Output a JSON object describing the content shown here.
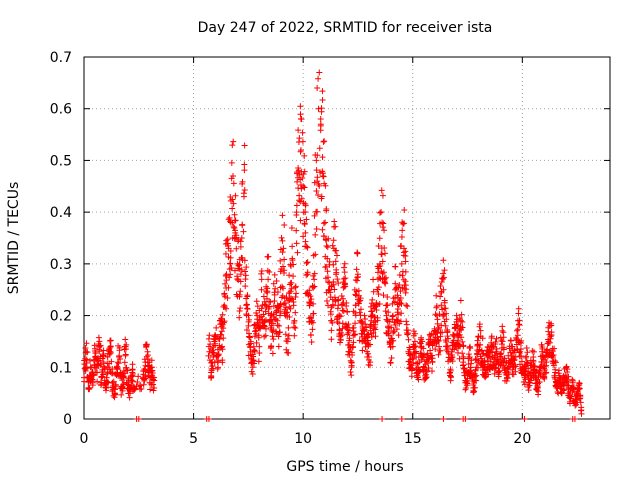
{
  "chart_data": {
    "type": "scatter",
    "title": "Day 247 of 2022, SRMTID for receiver ista",
    "xlabel": "GPS time / hours",
    "ylabel": "SRMTID / TECUs",
    "xlim": [
      0,
      24
    ],
    "ylim": [
      0,
      0.7
    ],
    "xticks": [
      0,
      5,
      10,
      15,
      20
    ],
    "xtick_labels": [
      "0",
      "5",
      "10",
      "15",
      "20"
    ],
    "yticks": [
      0,
      0.1,
      0.2,
      0.3,
      0.4,
      0.5,
      0.6,
      0.7
    ],
    "ytick_labels": [
      "0",
      "0.1",
      "0.2",
      "0.3",
      "0.4",
      "0.5",
      "0.6",
      "0.7"
    ],
    "grid": true,
    "marker": "plus",
    "series": [
      {
        "name": "SRMTID",
        "color": "#ff0000",
        "shape_points": [
          [
            0.0,
            0.08
          ],
          [
            0.1,
            0.13
          ],
          [
            0.2,
            0.06
          ],
          [
            0.3,
            0.1
          ],
          [
            0.4,
            0.07
          ],
          [
            0.5,
            0.12
          ],
          [
            0.6,
            0.09
          ],
          [
            0.7,
            0.15
          ],
          [
            0.8,
            0.08
          ],
          [
            0.9,
            0.11
          ],
          [
            1.0,
            0.06
          ],
          [
            1.1,
            0.1
          ],
          [
            1.2,
            0.13
          ],
          [
            1.3,
            0.07
          ],
          [
            1.4,
            0.05
          ],
          [
            1.5,
            0.09
          ],
          [
            1.6,
            0.12
          ],
          [
            1.7,
            0.06
          ],
          [
            1.8,
            0.08
          ],
          [
            1.9,
            0.14
          ],
          [
            2.0,
            0.07
          ],
          [
            2.1,
            0.05
          ],
          [
            2.2,
            0.09
          ],
          [
            2.3,
            0.06
          ],
          [
            2.7,
            0.08
          ],
          [
            2.8,
            0.11
          ],
          [
            2.9,
            0.13
          ],
          [
            3.0,
            0.07
          ],
          [
            3.1,
            0.1
          ],
          [
            3.2,
            0.06
          ],
          [
            5.7,
            0.14
          ],
          [
            5.8,
            0.09
          ],
          [
            5.9,
            0.12
          ],
          [
            6.0,
            0.16
          ],
          [
            6.1,
            0.11
          ],
          [
            6.2,
            0.19
          ],
          [
            6.3,
            0.14
          ],
          [
            6.4,
            0.22
          ],
          [
            6.5,
            0.28
          ],
          [
            6.6,
            0.33
          ],
          [
            6.7,
            0.38
          ],
          [
            6.8,
            0.47
          ],
          [
            6.9,
            0.36
          ],
          [
            7.0,
            0.3
          ],
          [
            7.1,
            0.24
          ],
          [
            7.2,
            0.35
          ],
          [
            7.3,
            0.43
          ],
          [
            7.4,
            0.22
          ],
          [
            7.5,
            0.18
          ],
          [
            7.6,
            0.13
          ],
          [
            7.7,
            0.1
          ],
          [
            7.8,
            0.16
          ],
          [
            7.9,
            0.2
          ],
          [
            8.0,
            0.14
          ],
          [
            8.1,
            0.25
          ],
          [
            8.2,
            0.18
          ],
          [
            8.3,
            0.22
          ],
          [
            8.4,
            0.27
          ],
          [
            8.5,
            0.19
          ],
          [
            8.6,
            0.16
          ],
          [
            8.7,
            0.24
          ],
          [
            8.8,
            0.21
          ],
          [
            8.9,
            0.18
          ],
          [
            9.0,
            0.29
          ],
          [
            9.1,
            0.33
          ],
          [
            9.2,
            0.2
          ],
          [
            9.3,
            0.15
          ],
          [
            9.4,
            0.26
          ],
          [
            9.5,
            0.31
          ],
          [
            9.6,
            0.19
          ],
          [
            9.7,
            0.4
          ],
          [
            9.8,
            0.48
          ],
          [
            9.9,
            0.52
          ],
          [
            10.0,
            0.45
          ],
          [
            10.1,
            0.36
          ],
          [
            10.2,
            0.28
          ],
          [
            10.3,
            0.22
          ],
          [
            10.4,
            0.19
          ],
          [
            10.5,
            0.27
          ],
          [
            10.6,
            0.5
          ],
          [
            10.7,
            0.6
          ],
          [
            10.8,
            0.58
          ],
          [
            10.9,
            0.47
          ],
          [
            11.0,
            0.38
          ],
          [
            11.1,
            0.31
          ],
          [
            11.2,
            0.25
          ],
          [
            11.3,
            0.19
          ],
          [
            11.4,
            0.33
          ],
          [
            11.5,
            0.28
          ],
          [
            11.6,
            0.22
          ],
          [
            11.7,
            0.16
          ],
          [
            11.8,
            0.21
          ],
          [
            11.9,
            0.26
          ],
          [
            12.0,
            0.18
          ],
          [
            12.1,
            0.13
          ],
          [
            12.2,
            0.11
          ],
          [
            12.3,
            0.17
          ],
          [
            12.4,
            0.22
          ],
          [
            12.5,
            0.28
          ],
          [
            12.6,
            0.19
          ],
          [
            12.7,
            0.15
          ],
          [
            12.8,
            0.2
          ],
          [
            12.9,
            0.16
          ],
          [
            13.0,
            0.12
          ],
          [
            13.1,
            0.18
          ],
          [
            13.2,
            0.22
          ],
          [
            13.3,
            0.16
          ],
          [
            13.4,
            0.25
          ],
          [
            13.5,
            0.3
          ],
          [
            13.6,
            0.38
          ],
          [
            13.7,
            0.27
          ],
          [
            13.8,
            0.2
          ],
          [
            13.9,
            0.17
          ],
          [
            14.0,
            0.14
          ],
          [
            14.1,
            0.2
          ],
          [
            14.2,
            0.25
          ],
          [
            14.3,
            0.19
          ],
          [
            14.4,
            0.23
          ],
          [
            14.5,
            0.3
          ],
          [
            14.6,
            0.33
          ],
          [
            14.7,
            0.22
          ],
          [
            14.8,
            0.13
          ],
          [
            14.9,
            0.1
          ],
          [
            15.0,
            0.12
          ],
          [
            15.1,
            0.15
          ],
          [
            15.2,
            0.09
          ],
          [
            15.3,
            0.11
          ],
          [
            15.4,
            0.14
          ],
          [
            15.5,
            0.1
          ],
          [
            15.6,
            0.08
          ],
          [
            15.7,
            0.12
          ],
          [
            15.8,
            0.15
          ],
          [
            15.9,
            0.11
          ],
          [
            16.0,
            0.17
          ],
          [
            16.1,
            0.2
          ],
          [
            16.2,
            0.14
          ],
          [
            16.3,
            0.22
          ],
          [
            16.4,
            0.25
          ],
          [
            16.5,
            0.18
          ],
          [
            16.6,
            0.13
          ],
          [
            16.7,
            0.09
          ],
          [
            16.8,
            0.12
          ],
          [
            16.9,
            0.16
          ],
          [
            17.0,
            0.2
          ],
          [
            17.1,
            0.14
          ],
          [
            17.2,
            0.19
          ],
          [
            17.3,
            0.11
          ],
          [
            17.4,
            0.07
          ],
          [
            17.5,
            0.09
          ],
          [
            17.6,
            0.12
          ],
          [
            17.7,
            0.08
          ],
          [
            17.8,
            0.06
          ],
          [
            17.9,
            0.1
          ],
          [
            18.0,
            0.13
          ],
          [
            18.1,
            0.16
          ],
          [
            18.2,
            0.11
          ],
          [
            18.3,
            0.09
          ],
          [
            18.4,
            0.12
          ],
          [
            18.5,
            0.1
          ],
          [
            18.6,
            0.14
          ],
          [
            18.7,
            0.11
          ],
          [
            18.8,
            0.13
          ],
          [
            18.9,
            0.09
          ],
          [
            19.0,
            0.12
          ],
          [
            19.1,
            0.15
          ],
          [
            19.2,
            0.1
          ],
          [
            19.3,
            0.08
          ],
          [
            19.4,
            0.11
          ],
          [
            19.5,
            0.14
          ],
          [
            19.6,
            0.1
          ],
          [
            19.7,
            0.12
          ],
          [
            19.8,
            0.19
          ],
          [
            19.9,
            0.13
          ],
          [
            20.0,
            0.1
          ],
          [
            20.1,
            0.08
          ],
          [
            20.2,
            0.11
          ],
          [
            20.3,
            0.07
          ],
          [
            20.4,
            0.09
          ],
          [
            20.5,
            0.12
          ],
          [
            20.6,
            0.08
          ],
          [
            20.7,
            0.06
          ],
          [
            20.8,
            0.1
          ],
          [
            20.9,
            0.13
          ],
          [
            21.0,
            0.08
          ],
          [
            21.1,
            0.11
          ],
          [
            21.2,
            0.15
          ],
          [
            21.3,
            0.16
          ],
          [
            21.4,
            0.12
          ],
          [
            21.5,
            0.09
          ],
          [
            21.6,
            0.06
          ],
          [
            21.7,
            0.08
          ],
          [
            21.8,
            0.05
          ],
          [
            21.9,
            0.07
          ],
          [
            22.0,
            0.1
          ],
          [
            22.1,
            0.06
          ],
          [
            22.2,
            0.04
          ],
          [
            22.3,
            0.07
          ],
          [
            22.4,
            0.03
          ],
          [
            22.5,
            0.05
          ],
          [
            22.6,
            0.06
          ],
          [
            22.7,
            0.01
          ]
        ],
        "zero_points": [
          2.4,
          2.5,
          5.6,
          5.7,
          13.6,
          14.5,
          16.4,
          17.3,
          17.4,
          20.1,
          22.3,
          22.4
        ]
      }
    ]
  }
}
